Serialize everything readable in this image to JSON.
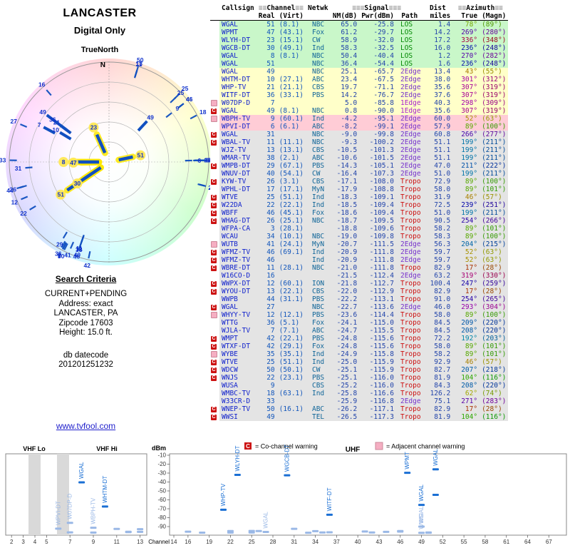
{
  "report": {
    "location": "LANCASTER",
    "mode": "Digital Only",
    "orientation": "TrueNorth",
    "north_label": "N"
  },
  "search_criteria": {
    "heading": "Search Criteria",
    "lines": [
      "CURRENT+PENDING",
      "Address: exact",
      "LANCASTER, PA",
      "Zipcode 17603",
      "Height: 15.0 ft."
    ],
    "db_datecode_label": "db datecode",
    "db_datecode": "201201251232",
    "link": "www.tvfool.com"
  },
  "legend": {
    "co_symbol": "C",
    "co_label": "= Co-channel warning",
    "adj_label": "= Adjacent channel warning"
  },
  "table": {
    "header": {
      "row1": [
        {
          "text": "",
          "span": 1
        },
        {
          "text": "Callsign",
          "align": "left"
        },
        {
          "pre": "≡≡",
          "text": "Channel",
          "post": "≡≡",
          "span": 2
        },
        {
          "text": "Netwk"
        },
        {
          "pre": "≡≡≡",
          "text": "Signal",
          "post": "≡≡≡",
          "span": 3
        },
        {
          "text": "Dist"
        },
        {
          "pre": "≡≡",
          "text": "Azimuth",
          "post": "≡≡",
          "span": 2
        }
      ],
      "row2": [
        "",
        "",
        "Real",
        "(Virt)",
        "",
        "NM(dB)",
        "Pwr(dBm)",
        "Path",
        "miles",
        "True",
        "(Magn)"
      ]
    },
    "row_fields": [
      "callsign",
      "real_ch",
      "virt_ch",
      "network",
      "nm_db",
      "pwr_dbm",
      "path",
      "dist_miles",
      "az_true_deg",
      "az_magn_deg",
      "tier",
      "warning"
    ],
    "rows": [
      [
        "WGAL",
        51,
        "(8.1)",
        "NBC",
        65.0,
        -25.8,
        "LOS",
        1.4,
        78,
        89,
        "g",
        ""
      ],
      [
        "WPMT",
        47,
        "(43.1)",
        "Fox",
        61.2,
        -29.7,
        "LOS",
        14.2,
        269,
        280,
        "g",
        ""
      ],
      [
        "WLYH-DT",
        23,
        "(15.1)",
        "CW",
        58.9,
        -32.0,
        "LOS",
        17.2,
        336,
        348,
        "g",
        ""
      ],
      [
        "WGCB-DT",
        30,
        "(49.1)",
        "Ind",
        58.3,
        -32.5,
        "LOS",
        16.0,
        236,
        248,
        "g",
        ""
      ],
      [
        "WGAL",
        8,
        "(8.1)",
        "NBC",
        50.4,
        -40.4,
        "LOS",
        1.2,
        270,
        282,
        "g",
        ""
      ],
      [
        "WGAL",
        51,
        "",
        "NBC",
        36.4,
        -54.4,
        "LOS",
        1.6,
        236,
        248,
        "g",
        ""
      ],
      [
        "WGAL",
        49,
        "",
        "NBC",
        25.1,
        -65.7,
        "2Edge",
        13.4,
        43,
        55,
        "y",
        ""
      ],
      [
        "WHTM-DT",
        10,
        "(27.1)",
        "ABC",
        23.4,
        -67.5,
        "2Edge",
        38.0,
        301,
        312,
        "y",
        ""
      ],
      [
        "WHP-TV",
        21,
        "(21.1)",
        "CBS",
        19.7,
        -71.1,
        "2Edge",
        35.6,
        307,
        319,
        "y",
        ""
      ],
      [
        "WITF-DT",
        36,
        "(33.1)",
        "PBS",
        14.2,
        -76.7,
        "2Edge",
        37.6,
        307,
        319,
        "y",
        ""
      ],
      [
        "W07DP-D",
        7,
        "",
        "",
        5.0,
        -85.8,
        "1Edge",
        40.3,
        298,
        309,
        "y",
        "A"
      ],
      [
        "WGAL",
        49,
        "(8.1)",
        "NBC",
        0.8,
        -90.0,
        "1Edge",
        35.6,
        307,
        319,
        "y",
        "C"
      ],
      [
        "WBPH-TV",
        9,
        "(60.1)",
        "Ind",
        -4.2,
        -95.1,
        "2Edge",
        60.0,
        52,
        63,
        "p",
        "A"
      ],
      [
        "WPVI-DT",
        6,
        "(6.1)",
        "ABC",
        -8.2,
        -99.1,
        "2Edge",
        57.9,
        89,
        100,
        "p",
        ""
      ],
      [
        "WGAL",
        31,
        "",
        "NBC",
        -9.0,
        -99.8,
        "2Edge",
        60.8,
        266,
        277,
        "gr",
        "C"
      ],
      [
        "WBAL-TV",
        11,
        "(11.1)",
        "NBC",
        -9.3,
        -100.2,
        "2Edge",
        51.1,
        199,
        211,
        "gr",
        "C"
      ],
      [
        "WJZ-TV",
        13,
        "(13.1)",
        "CBS",
        -10.5,
        -101.3,
        "2Edge",
        51.1,
        199,
        211,
        "gr",
        ""
      ],
      [
        "WMAR-TV",
        38,
        "(2.1)",
        "ABC",
        -10.6,
        -101.5,
        "2Edge",
        51.1,
        199,
        211,
        "gr",
        ""
      ],
      [
        "WMPB-DT",
        29,
        "(67.1)",
        "PBS",
        -14.3,
        -105.1,
        "2Edge",
        47.0,
        211,
        222,
        "gr",
        "C"
      ],
      [
        "WNUV-DT",
        40,
        "(54.1)",
        "CW",
        -16.4,
        -107.3,
        "2Edge",
        51.0,
        199,
        211,
        "gr",
        ""
      ],
      [
        "KYW-TV",
        26,
        "(3.1)",
        "CBS",
        -17.1,
        -108.0,
        "Tropo",
        72.9,
        89,
        100,
        "gr",
        "C"
      ],
      [
        "WPHL-DT",
        17,
        "(17.1)",
        "MyN",
        -17.9,
        -108.8,
        "Tropo",
        58.0,
        89,
        101,
        "gr",
        ""
      ],
      [
        "WTVE",
        25,
        "(51.1)",
        "Ind",
        -18.3,
        -109.1,
        "Tropo",
        31.9,
        46,
        57,
        "gr",
        "C"
      ],
      [
        "W22DA",
        22,
        "(22.1)",
        "Ind",
        -18.5,
        -109.4,
        "Tropo",
        72.5,
        239,
        251,
        "gr",
        "C"
      ],
      [
        "WBFF",
        46,
        "(45.1)",
        "Fox",
        -18.6,
        -109.4,
        "Tropo",
        51.0,
        199,
        211,
        "gr",
        "C"
      ],
      [
        "WHAG-DT",
        26,
        "(25.1)",
        "NBC",
        -18.7,
        -109.5,
        "Tropo",
        90.5,
        254,
        266,
        "gr",
        "C"
      ],
      [
        "WFPA-CA",
        3,
        "(28.1)",
        "",
        -18.8,
        -109.6,
        "Tropo",
        58.2,
        89,
        101,
        "gr",
        ""
      ],
      [
        "WCAU",
        34,
        "(10.1)",
        "NBC",
        -19.0,
        -109.8,
        "Tropo",
        58.3,
        89,
        100,
        "gr",
        ""
      ],
      [
        "WUTB",
        41,
        "(24.1)",
        "MyN",
        -20.7,
        -111.5,
        "2Edge",
        56.3,
        204,
        215,
        "gr",
        "A"
      ],
      [
        "WFMZ-TV",
        46,
        "(69.1)",
        "Ind",
        -20.9,
        -111.8,
        "2Edge",
        59.7,
        52,
        63,
        "gr",
        "C"
      ],
      [
        "WFMZ-TV",
        46,
        "",
        "Ind",
        -20.9,
        -111.8,
        "2Edge",
        59.7,
        52,
        63,
        "gr",
        "C"
      ],
      [
        "WBRE-DT",
        11,
        "(28.1)",
        "NBC",
        -21.0,
        -111.8,
        "Tropo",
        82.9,
        17,
        28,
        "gr",
        "C"
      ],
      [
        "W16CO-D",
        16,
        "",
        "",
        -21.5,
        -112.4,
        "2Edge",
        63.2,
        319,
        330,
        "gr",
        ""
      ],
      [
        "WWPX-DT",
        12,
        "(60.1)",
        "ION",
        -21.8,
        -112.7,
        "Tropo",
        100.4,
        247,
        259,
        "gr",
        "C"
      ],
      [
        "WYOU-DT",
        13,
        "(22.1)",
        "CBS",
        -22.0,
        -112.9,
        "Tropo",
        82.9,
        17,
        28,
        "gr",
        "C"
      ],
      [
        "WWPB",
        44,
        "(31.1)",
        "PBS",
        -22.2,
        -113.1,
        "Tropo",
        91.0,
        254,
        265,
        "gr",
        ""
      ],
      [
        "WGAL",
        27,
        "",
        "NBC",
        -22.7,
        -113.6,
        "2Edge",
        46.0,
        293,
        304,
        "gr",
        "C"
      ],
      [
        "WHYY-TV",
        12,
        "(12.1)",
        "PBS",
        -23.6,
        -114.4,
        "Tropo",
        58.0,
        89,
        100,
        "gr",
        "A"
      ],
      [
        "WTTG",
        36,
        "(5.1)",
        "Fox",
        -24.1,
        -115.0,
        "Tropo",
        84.5,
        209,
        220,
        "gr",
        ""
      ],
      [
        "WJLA-TV",
        7,
        "(7.1)",
        "ABC",
        -24.7,
        -115.5,
        "Tropo",
        84.5,
        208,
        220,
        "gr",
        ""
      ],
      [
        "WMPT",
        42,
        "(22.1)",
        "PBS",
        -24.8,
        -115.6,
        "Tropo",
        72.2,
        192,
        203,
        "gr",
        "C"
      ],
      [
        "WTXF-DT",
        42,
        "(29.1)",
        "Fox",
        -24.8,
        -115.6,
        "Tropo",
        58.0,
        89,
        101,
        "gr",
        "C"
      ],
      [
        "WYBE",
        35,
        "(35.1)",
        "Ind",
        -24.9,
        -115.8,
        "Tropo",
        58.2,
        89,
        101,
        "gr",
        "A"
      ],
      [
        "WTVE",
        25,
        "(51.1)",
        "Ind",
        -25.0,
        -115.9,
        "Tropo",
        92.9,
        46,
        57,
        "gr",
        "C"
      ],
      [
        "WDCW",
        50,
        "(50.1)",
        "CW",
        -25.1,
        -115.9,
        "Tropo",
        82.7,
        207,
        218,
        "gr",
        "C"
      ],
      [
        "WNJS",
        22,
        "(23.1)",
        "PBS",
        -25.1,
        -116.0,
        "Tropo",
        81.9,
        104,
        116,
        "gr",
        "C"
      ],
      [
        "WUSA",
        9,
        "",
        "CBS",
        -25.2,
        -116.0,
        "Tropo",
        84.3,
        208,
        220,
        "gr",
        ""
      ],
      [
        "WMBC-TV",
        18,
        "(63.1)",
        "Ind",
        -25.8,
        -116.6,
        "Tropo",
        126.2,
        62,
        74,
        "gr",
        ""
      ],
      [
        "W33CR-D",
        33,
        "",
        "",
        -25.9,
        -116.8,
        "2Edge",
        75.1,
        271,
        283,
        "gr",
        ""
      ],
      [
        "WNEP-TV",
        50,
        "(16.1)",
        "ABC",
        -26.2,
        -117.1,
        "Tropo",
        82.9,
        17,
        28,
        "gr",
        "C"
      ],
      [
        "WWSI",
        49,
        "",
        "TEL",
        -26.5,
        -117.3,
        "Tropo",
        81.9,
        104,
        116,
        "gr",
        "C"
      ]
    ]
  },
  "chart_data": [
    {
      "type": "scatter",
      "name": "azimuth-radar",
      "description": "Polar plot: real channel numbers plotted at true azimuth bearing; stronger NM(dB) nearer center; LOS stations highlighted yellow",
      "derived_from": "table.rows",
      "angle_field": "az_true_deg",
      "magnitude_field": "nm_db",
      "north_label": "N"
    },
    {
      "type": "scatter",
      "name": "signal-levels",
      "xlabel": "Channel",
      "ylabel": "dBm",
      "ylim": [
        -90,
        -10
      ],
      "band_labels": {
        "vhf_lo": "VHF Lo",
        "vhf_hi": "VHF Hi",
        "uhf": "UHF"
      },
      "dbm_ticks": [
        -10,
        -20,
        -30,
        -40,
        -50,
        -60,
        -70,
        -80,
        -90
      ],
      "vhf_ticks": [
        2,
        3,
        4,
        5,
        7,
        9,
        11,
        13
      ],
      "uhf_ticks": [
        14,
        16,
        19,
        22,
        25,
        28,
        31,
        34,
        37,
        40,
        43,
        46,
        49,
        52,
        55,
        58,
        61,
        64,
        67
      ],
      "points": [
        {
          "label": "WPVI-DT",
          "ch": 6,
          "dbm": -99.1,
          "faded": true
        },
        {
          "label": "W07DP-D",
          "ch": 7,
          "dbm": -85.8,
          "faded": true
        },
        {
          "label": "WGAL",
          "ch": 8,
          "dbm": -40.4,
          "faded": false
        },
        {
          "label": "WBPH-TV",
          "ch": 9,
          "dbm": -95.1,
          "faded": true
        },
        {
          "label": "WHTM-DT",
          "ch": 10,
          "dbm": -67.5,
          "faded": false
        },
        {
          "label": "",
          "ch": 11,
          "dbm": -100.2,
          "faded": true
        },
        {
          "label": "",
          "ch": 13,
          "dbm": -101.3,
          "faded": true
        },
        {
          "label": "",
          "ch": 12,
          "dbm": -112.7,
          "faded": true
        },
        {
          "label": "",
          "ch": 13,
          "dbm": -112.9,
          "faded": true
        },
        {
          "label": "",
          "ch": 12,
          "dbm": -114.4,
          "faded": true
        },
        {
          "label": "",
          "ch": 7,
          "dbm": -115.5,
          "faded": true
        },
        {
          "label": "",
          "ch": 9,
          "dbm": -116.0,
          "faded": true
        },
        {
          "label": "WHP-TV",
          "ch": 21,
          "dbm": -71.1,
          "faded": false
        },
        {
          "label": "WLYH-DT",
          "ch": 23,
          "dbm": -32.0,
          "faded": false
        },
        {
          "label": "WGAL",
          "ch": 27,
          "dbm": -113.6,
          "faded": true
        },
        {
          "label": "WGCB-DT",
          "ch": 30,
          "dbm": -32.5,
          "faded": false
        },
        {
          "label": "",
          "ch": 31,
          "dbm": -99.8,
          "faded": true
        },
        {
          "label": "WITF-DT",
          "ch": 36,
          "dbm": -76.7,
          "faded": false
        },
        {
          "label": "WPMT",
          "ch": 47,
          "dbm": -29.7,
          "faded": false
        },
        {
          "label": "WGAL",
          "ch": 49,
          "dbm": -65.7,
          "faded": false
        },
        {
          "label": "WGAL",
          "ch": 49,
          "dbm": -90.0,
          "faded": true
        },
        {
          "label": "WWSI",
          "ch": 49,
          "dbm": -117.3,
          "faded": true
        },
        {
          "label": "WGAL",
          "ch": 51,
          "dbm": -25.8,
          "faded": false
        },
        {
          "label": "",
          "ch": 51,
          "dbm": -54.4,
          "faded": false
        },
        {
          "label": "",
          "ch": 25,
          "dbm": -109.1,
          "faded": true
        },
        {
          "label": "",
          "ch": 22,
          "dbm": -109.4,
          "faded": true
        },
        {
          "label": "",
          "ch": 46,
          "dbm": -109.4,
          "faded": true
        },
        {
          "label": "",
          "ch": 26,
          "dbm": -109.5,
          "faded": true
        },
        {
          "label": "",
          "ch": 34,
          "dbm": -109.8,
          "faded": true
        },
        {
          "label": "",
          "ch": 41,
          "dbm": -111.5,
          "faded": true
        },
        {
          "label": "",
          "ch": 46,
          "dbm": -111.8,
          "faded": true
        },
        {
          "label": "",
          "ch": 16,
          "dbm": -112.4,
          "faded": true
        },
        {
          "label": "",
          "ch": 44,
          "dbm": -113.1,
          "faded": true
        },
        {
          "label": "",
          "ch": 36,
          "dbm": -115.0,
          "faded": true
        },
        {
          "label": "",
          "ch": 42,
          "dbm": -115.6,
          "faded": true
        },
        {
          "label": "",
          "ch": 35,
          "dbm": -115.8,
          "faded": true
        },
        {
          "label": "",
          "ch": 25,
          "dbm": -115.9,
          "faded": true
        },
        {
          "label": "",
          "ch": 50,
          "dbm": -115.9,
          "faded": true
        },
        {
          "label": "",
          "ch": 22,
          "dbm": -116.0,
          "faded": true
        },
        {
          "label": "",
          "ch": 18,
          "dbm": -116.6,
          "faded": true
        },
        {
          "label": "",
          "ch": 33,
          "dbm": -116.8,
          "faded": true
        },
        {
          "label": "",
          "ch": 50,
          "dbm": -117.1,
          "faded": true
        }
      ]
    }
  ],
  "colors": {
    "callsign": "#1122cc",
    "number": "#2244aa",
    "network": "#116699",
    "path": {
      "LOS": "#008800",
      "1Edge": "#aa22cc",
      "2Edge": "#7733cc",
      "Tropo": "#cc1111"
    },
    "tier_bg": {
      "g": "#c9f7c9",
      "y": "#ffffc9",
      "p": "#ffccd6",
      "gr": "#e4e4e4"
    },
    "marker": "#1a6fd4",
    "marker_faded": "#9ab8e6",
    "co_warning": "#cc1111",
    "adj_warning": "#f5aec2",
    "spoke": "#1150c0",
    "spoke_halo": "#ffe800"
  }
}
